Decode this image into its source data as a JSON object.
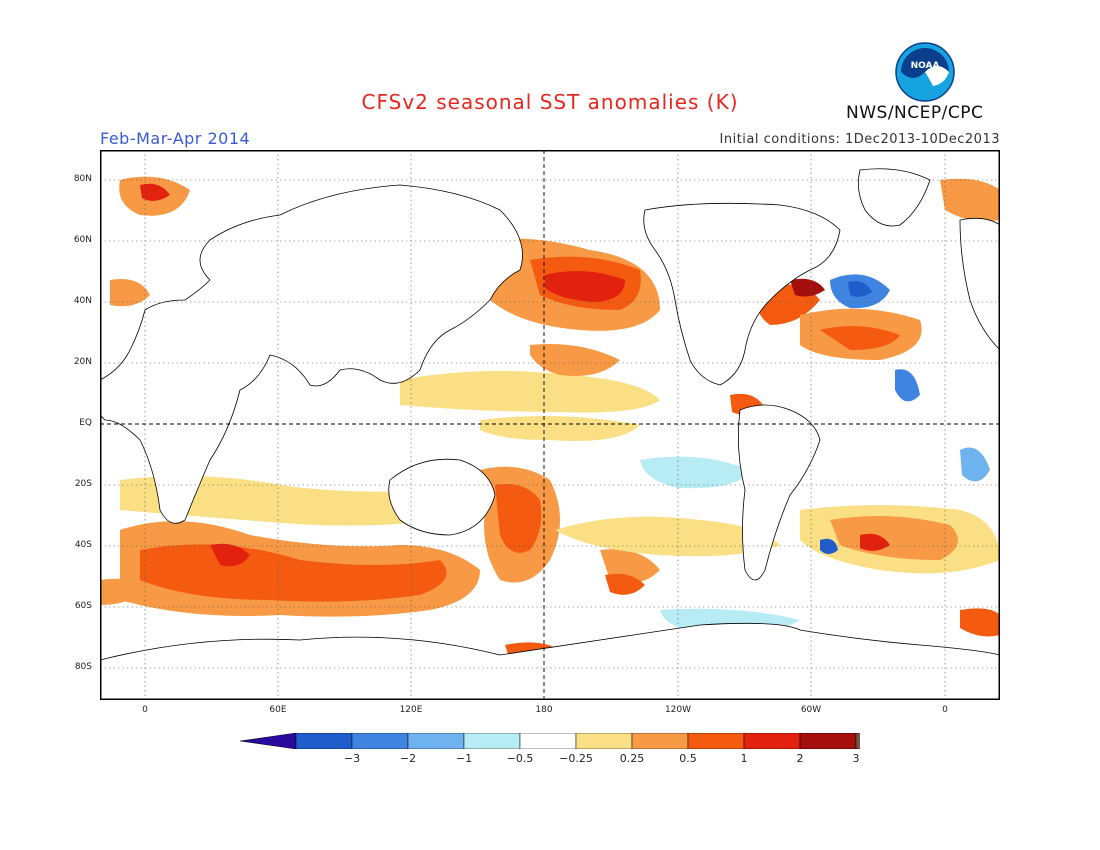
{
  "header": {
    "title": "CFSv2 seasonal SST anomalies (K)",
    "period": "Feb-Mar-Apr 2014",
    "initial_conditions": "Initial conditions: 1Dec2013-10Dec2013",
    "agency": "NWS/NCEP/CPC",
    "logo_text": "NOAA"
  },
  "map": {
    "lat_ticks": [
      "80N",
      "60N",
      "40N",
      "20N",
      "EQ",
      "20S",
      "40S",
      "60S",
      "80S"
    ],
    "lon_ticks": [
      "0",
      "60E",
      "120E",
      "180",
      "120W",
      "60W",
      "0"
    ],
    "grid": "dotted",
    "reference_lines": [
      "EQ",
      "180"
    ]
  },
  "colorbar": {
    "labels": [
      "-3",
      "-2",
      "-1",
      "-0.5",
      "-0.25",
      "0.25",
      "0.5",
      "1",
      "2",
      "3"
    ],
    "colors": [
      "#2a0a9e",
      "#1f5ccc",
      "#3f84e0",
      "#6fb2f0",
      "#b7ecf5",
      "#ffffff",
      "#fbdf85",
      "#f89a45",
      "#f45b10",
      "#e3210f",
      "#a40f0d",
      "#7a5541"
    ]
  },
  "colors": {
    "title": "#e8261f",
    "period": "#3a5bd8",
    "land": "#ffffff",
    "ocean_neutral": "#ffffff"
  }
}
